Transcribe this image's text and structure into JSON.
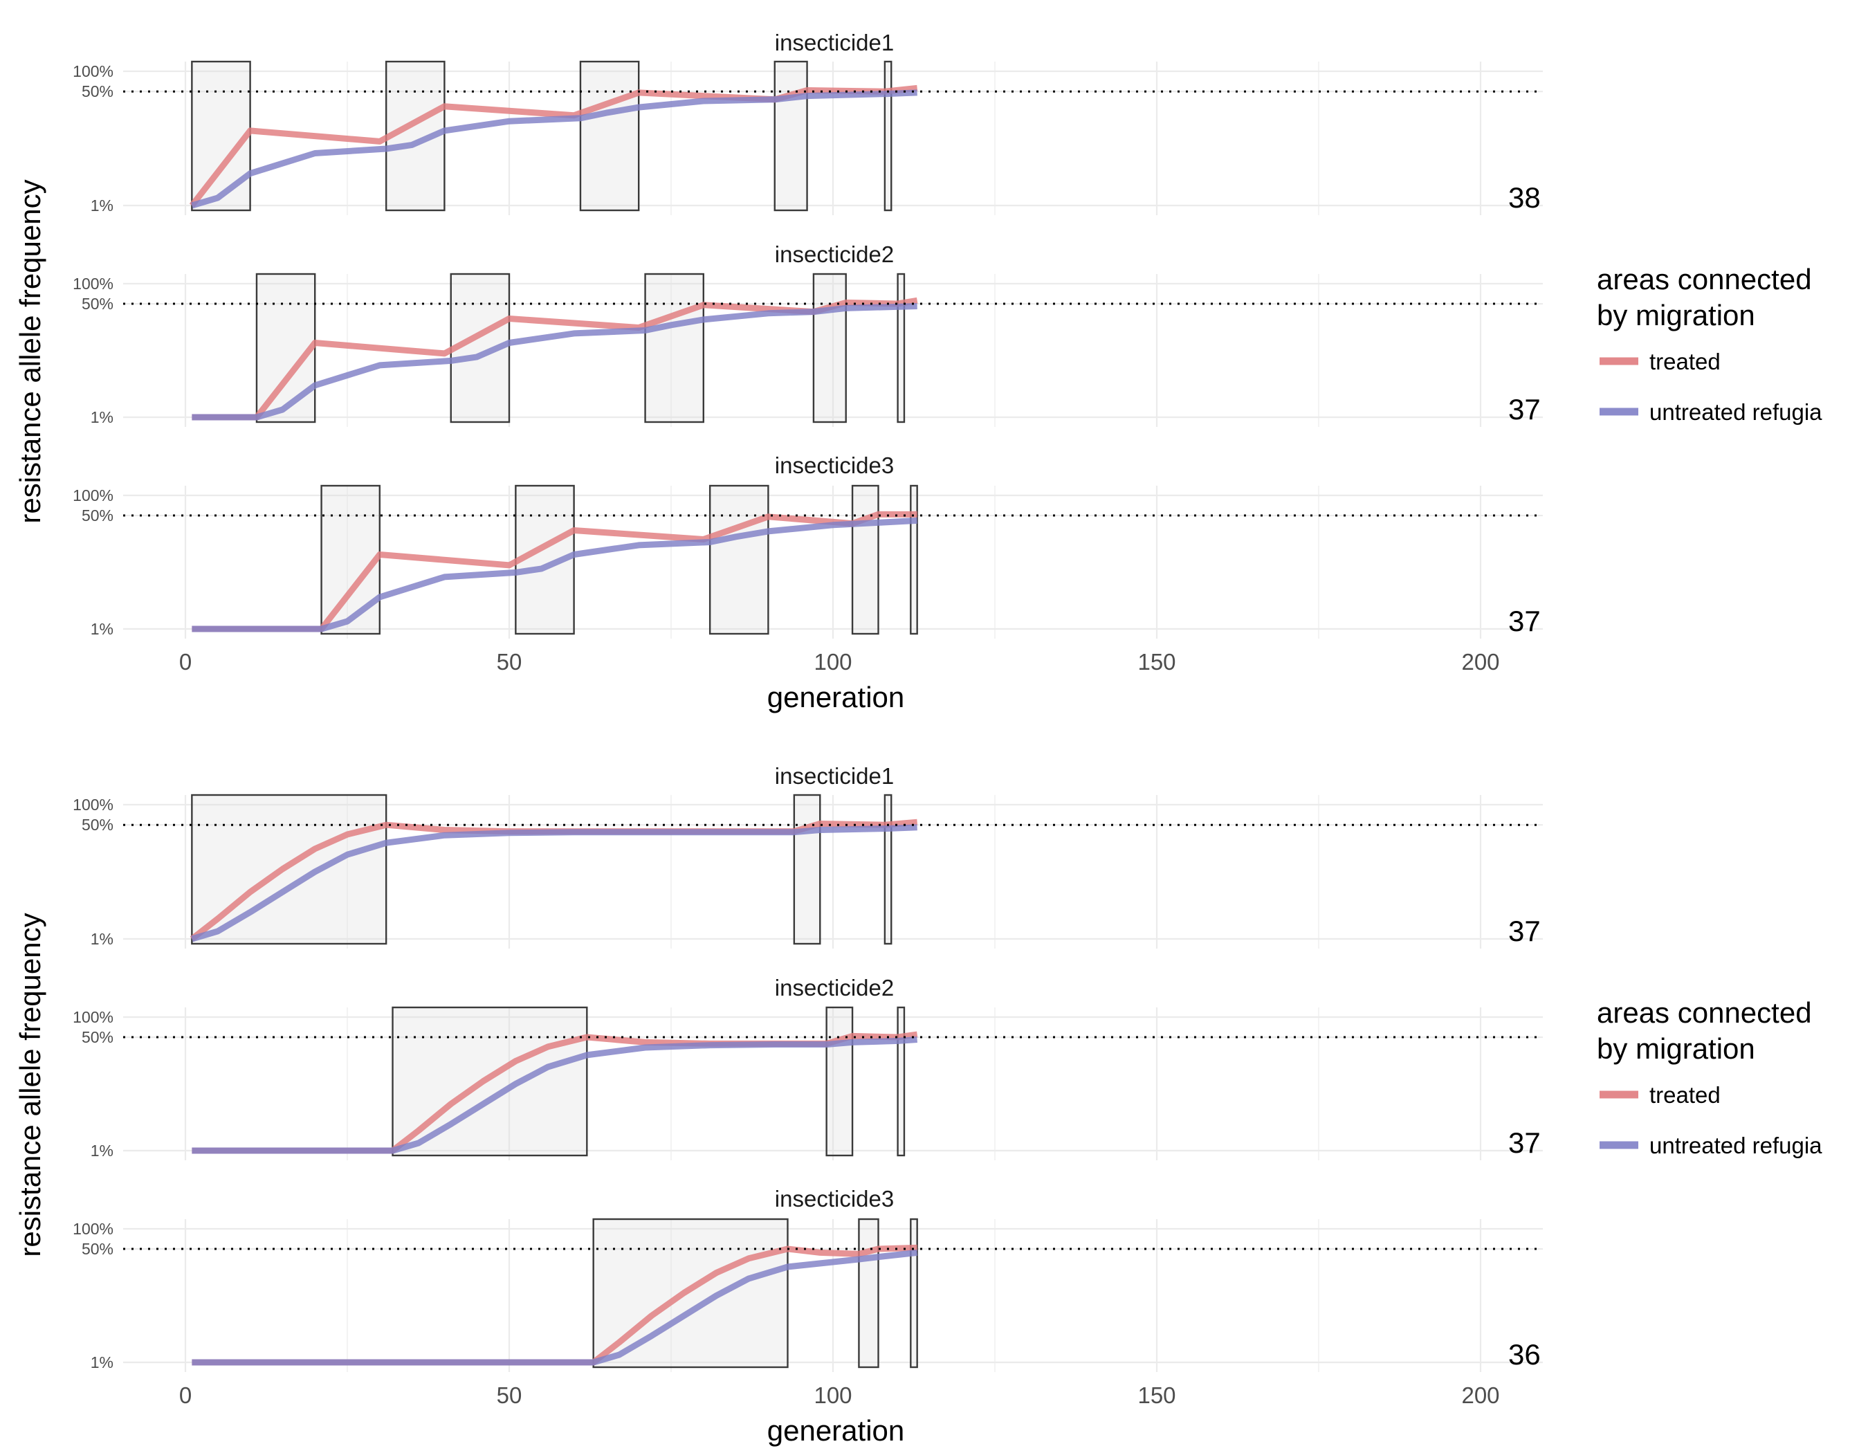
{
  "chart_data": [
    {
      "type": "line",
      "xlabel": "generation",
      "ylabel": "resistance allele frequency",
      "xlim": [
        0,
        200
      ],
      "x_ticks": [
        "0",
        "50",
        "100",
        "150",
        "200"
      ],
      "y_ticks": [
        "1%",
        "50%",
        "100%"
      ],
      "y_scale": "log",
      "reference_line": 0.5,
      "grid": true,
      "legend": {
        "title_lines": [
          "areas connected",
          "by migration"
        ],
        "entries": [
          {
            "label": "treated",
            "color": "#e07b7e"
          },
          {
            "label": "untreated refugia",
            "color": "#7f7fc6"
          }
        ],
        "placement": "right"
      },
      "panels": [
        {
          "strip": "insecticide1",
          "end_label": "38",
          "treatment_windows": [
            [
              1,
              10
            ],
            [
              31,
              40
            ],
            [
              61,
              70
            ],
            [
              91,
              96
            ],
            [
              108,
              109
            ]
          ],
          "series": [
            {
              "name": "treated",
              "color": "#e07b7e",
              "x": [
                1,
                10,
                30,
                40,
                60,
                70,
                91,
                96,
                108,
                113
              ],
              "y": [
                0.01,
                0.13,
                0.09,
                0.3,
                0.22,
                0.48,
                0.38,
                0.52,
                0.5,
                0.56
              ]
            },
            {
              "name": "untreated refugia",
              "color": "#7f7fc6",
              "x": [
                1,
                5,
                10,
                20,
                31,
                35,
                40,
                50,
                61,
                65,
                70,
                80,
                91,
                96,
                108,
                113
              ],
              "y": [
                0.01,
                0.013,
                0.03,
                0.06,
                0.07,
                0.08,
                0.13,
                0.18,
                0.2,
                0.24,
                0.29,
                0.36,
                0.38,
                0.43,
                0.46,
                0.48
              ]
            }
          ]
        },
        {
          "strip": "insecticide2",
          "end_label": "37",
          "treatment_windows": [
            [
              11,
              20
            ],
            [
              41,
              50
            ],
            [
              71,
              80
            ],
            [
              97,
              102
            ],
            [
              110,
              111
            ]
          ],
          "series": [
            {
              "name": "treated",
              "color": "#e07b7e",
              "x": [
                1,
                11,
                20,
                40,
                50,
                70,
                80,
                97,
                102,
                110,
                113
              ],
              "y": [
                0.01,
                0.01,
                0.13,
                0.09,
                0.3,
                0.22,
                0.48,
                0.38,
                0.52,
                0.5,
                0.56
              ]
            },
            {
              "name": "untreated refugia",
              "color": "#7f7fc6",
              "x": [
                1,
                11,
                15,
                20,
                30,
                41,
                45,
                50,
                60,
                71,
                75,
                80,
                90,
                97,
                102,
                113
              ],
              "y": [
                0.01,
                0.01,
                0.013,
                0.03,
                0.06,
                0.07,
                0.08,
                0.13,
                0.18,
                0.2,
                0.24,
                0.29,
                0.36,
                0.38,
                0.43,
                0.46
              ]
            }
          ]
        },
        {
          "strip": "insecticide3",
          "end_label": "37",
          "treatment_windows": [
            [
              21,
              30
            ],
            [
              51,
              60
            ],
            [
              81,
              90
            ],
            [
              103,
              107
            ],
            [
              112,
              113
            ]
          ],
          "series": [
            {
              "name": "treated",
              "color": "#e07b7e",
              "x": [
                1,
                21,
                30,
                50,
                60,
                80,
                90,
                103,
                107,
                113
              ],
              "y": [
                0.01,
                0.01,
                0.13,
                0.09,
                0.3,
                0.22,
                0.48,
                0.38,
                0.52,
                0.52
              ]
            },
            {
              "name": "untreated refugia",
              "color": "#7f7fc6",
              "x": [
                1,
                21,
                25,
                30,
                40,
                51,
                55,
                60,
                70,
                81,
                85,
                90,
                100,
                113
              ],
              "y": [
                0.01,
                0.01,
                0.013,
                0.03,
                0.06,
                0.07,
                0.08,
                0.13,
                0.18,
                0.2,
                0.24,
                0.29,
                0.36,
                0.42
              ]
            }
          ]
        }
      ]
    },
    {
      "type": "line",
      "xlabel": "generation",
      "ylabel": "resistance allele frequency",
      "xlim": [
        0,
        200
      ],
      "x_ticks": [
        "0",
        "50",
        "100",
        "150",
        "200"
      ],
      "y_ticks": [
        "1%",
        "50%",
        "100%"
      ],
      "y_scale": "log",
      "reference_line": 0.5,
      "grid": true,
      "legend": {
        "title_lines": [
          "areas connected",
          "by migration"
        ],
        "entries": [
          {
            "label": "treated",
            "color": "#e07b7e"
          },
          {
            "label": "untreated refugia",
            "color": "#7f7fc6"
          }
        ],
        "placement": "right"
      },
      "panels": [
        {
          "strip": "insecticide1",
          "end_label": "37",
          "treatment_windows": [
            [
              1,
              31
            ],
            [
              94,
              98
            ],
            [
              108,
              109
            ]
          ],
          "series": [
            {
              "name": "treated",
              "color": "#e07b7e",
              "x": [
                1,
                5,
                10,
                15,
                20,
                25,
                31,
                40,
                50,
                60,
                70,
                80,
                94,
                98,
                108,
                113
              ],
              "y": [
                0.01,
                0.02,
                0.05,
                0.11,
                0.22,
                0.36,
                0.5,
                0.42,
                0.4,
                0.4,
                0.4,
                0.4,
                0.4,
                0.52,
                0.5,
                0.55
              ]
            },
            {
              "name": "untreated refugia",
              "color": "#7f7fc6",
              "x": [
                1,
                5,
                10,
                15,
                20,
                25,
                31,
                40,
                50,
                60,
                70,
                80,
                94,
                98,
                108,
                113
              ],
              "y": [
                0.01,
                0.013,
                0.025,
                0.05,
                0.1,
                0.18,
                0.27,
                0.35,
                0.38,
                0.39,
                0.39,
                0.39,
                0.39,
                0.42,
                0.44,
                0.46
              ]
            }
          ]
        },
        {
          "strip": "insecticide2",
          "end_label": "37",
          "treatment_windows": [
            [
              32,
              62
            ],
            [
              99,
              103
            ],
            [
              110,
              111
            ]
          ],
          "series": [
            {
              "name": "treated",
              "color": "#e07b7e",
              "x": [
                1,
                32,
                36,
                41,
                46,
                51,
                56,
                62,
                71,
                81,
                91,
                99,
                103,
                110,
                113
              ],
              "y": [
                0.01,
                0.01,
                0.02,
                0.05,
                0.11,
                0.22,
                0.36,
                0.5,
                0.42,
                0.4,
                0.4,
                0.4,
                0.52,
                0.5,
                0.55
              ]
            },
            {
              "name": "untreated refugia",
              "color": "#7f7fc6",
              "x": [
                1,
                32,
                36,
                41,
                46,
                51,
                56,
                62,
                71,
                81,
                91,
                99,
                103,
                110,
                113
              ],
              "y": [
                0.01,
                0.01,
                0.013,
                0.025,
                0.05,
                0.1,
                0.18,
                0.27,
                0.35,
                0.38,
                0.39,
                0.39,
                0.42,
                0.44,
                0.46
              ]
            }
          ]
        },
        {
          "strip": "insecticide3",
          "end_label": "36",
          "treatment_windows": [
            [
              63,
              93
            ],
            [
              104,
              107
            ],
            [
              112,
              113
            ]
          ],
          "series": [
            {
              "name": "treated",
              "color": "#e07b7e",
              "x": [
                1,
                63,
                67,
                72,
                77,
                82,
                87,
                93,
                98,
                104,
                107,
                113
              ],
              "y": [
                0.01,
                0.01,
                0.02,
                0.05,
                0.11,
                0.22,
                0.36,
                0.5,
                0.44,
                0.42,
                0.5,
                0.52
              ]
            },
            {
              "name": "untreated refugia",
              "color": "#7f7fc6",
              "x": [
                1,
                63,
                67,
                72,
                77,
                82,
                87,
                93,
                104,
                107,
                113
              ],
              "y": [
                0.01,
                0.01,
                0.013,
                0.025,
                0.05,
                0.1,
                0.18,
                0.27,
                0.35,
                0.38,
                0.44
              ]
            }
          ]
        }
      ]
    }
  ]
}
